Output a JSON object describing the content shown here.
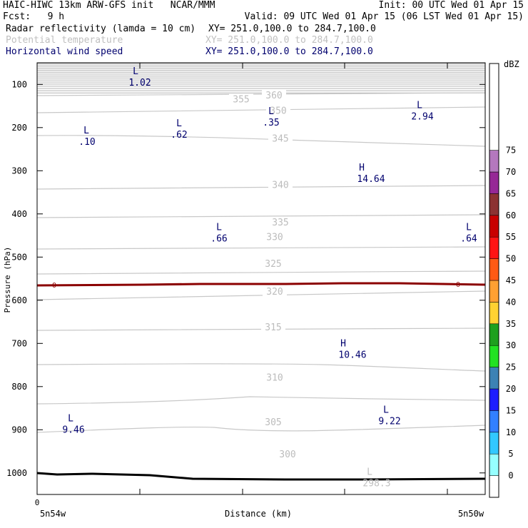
{
  "header": {
    "line1_left": "HAIC-HIWC 13km ARW-GFS init   NCAR/MMM",
    "line1_right": "Init: 00 UTC Wed 01 Apr 15",
    "line2_left": "Fcst:   9 h",
    "line2_right": "Valid: 09 UTC Wed 01 Apr 15 (06 LST Wed 01 Apr 15)",
    "fields": [
      {
        "name": "Radar reflectivity (lamda = 10 cm)",
        "xy": "XY= 251.0,100.0 to 284.7,100.0",
        "color": "#000000"
      },
      {
        "name": "Potential temperature",
        "xy": "XY= 251.0,100.0 to 284.7,100.0",
        "color": "#c0c0c0"
      },
      {
        "name": "Horizontal wind speed",
        "xy": "XY= 251.0,100.0 to 284.7,100.0",
        "color": "#00006e"
      }
    ]
  },
  "chart_data": {
    "type": "line",
    "xlabel": "Distance (km)",
    "ylabel": "Pressure (hPa)",
    "x_ticks": [
      "0"
    ],
    "x_end_labels": [
      "5n54w",
      "5n50w"
    ],
    "y_ticks": [
      100,
      200,
      300,
      400,
      500,
      600,
      700,
      800,
      900,
      1000
    ],
    "ylim": [
      50,
      1050
    ],
    "theta_labels": [
      {
        "text": "360",
        "p": 128
      },
      {
        "text": "355",
        "p": 137
      },
      {
        "text": "350",
        "p": 163
      },
      {
        "text": "345",
        "p": 228
      },
      {
        "text": "340",
        "p": 335
      },
      {
        "text": "335",
        "p": 422
      },
      {
        "text": "330",
        "p": 456
      },
      {
        "text": "325",
        "p": 518
      },
      {
        "text": "320",
        "p": 582
      },
      {
        "text": "315",
        "p": 665
      },
      {
        "text": "310",
        "p": 781
      },
      {
        "text": "305",
        "p": 885
      },
      {
        "text": "300",
        "p": 959
      }
    ],
    "freezing_level_label": "0",
    "wind_extrema": [
      {
        "type": "L",
        "value": "1.02",
        "p": 80
      },
      {
        "type": "L",
        "value": "2.94",
        "p": 158
      },
      {
        "type": "L",
        "value": ".35",
        "p": 172
      },
      {
        "type": "L",
        "value": ".62",
        "p": 200
      },
      {
        "type": "L",
        "value": ".10",
        "p": 217
      },
      {
        "type": "H",
        "value": "14.64",
        "p": 303
      },
      {
        "type": "L",
        "value": ".66",
        "p": 441
      },
      {
        "type": "L",
        "value": ".64",
        "p": 441
      },
      {
        "type": "H",
        "value": "10.46",
        "p": 710
      },
      {
        "type": "L",
        "value": "9.22",
        "p": 864
      },
      {
        "type": "L",
        "value": "9.46",
        "p": 884
      }
    ],
    "theta_extrema": [
      {
        "type": "L",
        "value": "298.3",
        "p": 1011
      }
    ],
    "colorbar": {
      "unit": "dBZ",
      "ticks": [
        "0",
        "5",
        "10",
        "15",
        "20",
        "25",
        "30",
        "35",
        "40",
        "45",
        "50",
        "55",
        "60",
        "65",
        "70",
        "75"
      ],
      "colors": [
        "#ffffff",
        "#96ffff",
        "#32c8ff",
        "#3280ff",
        "#1e1eff",
        "#3c82b4",
        "#22e222",
        "#1ea01e",
        "#ffd232",
        "#ffa032",
        "#ff5a14",
        "#ff1414",
        "#c80000",
        "#8c3232",
        "#962896",
        "#b478be"
      ]
    }
  }
}
